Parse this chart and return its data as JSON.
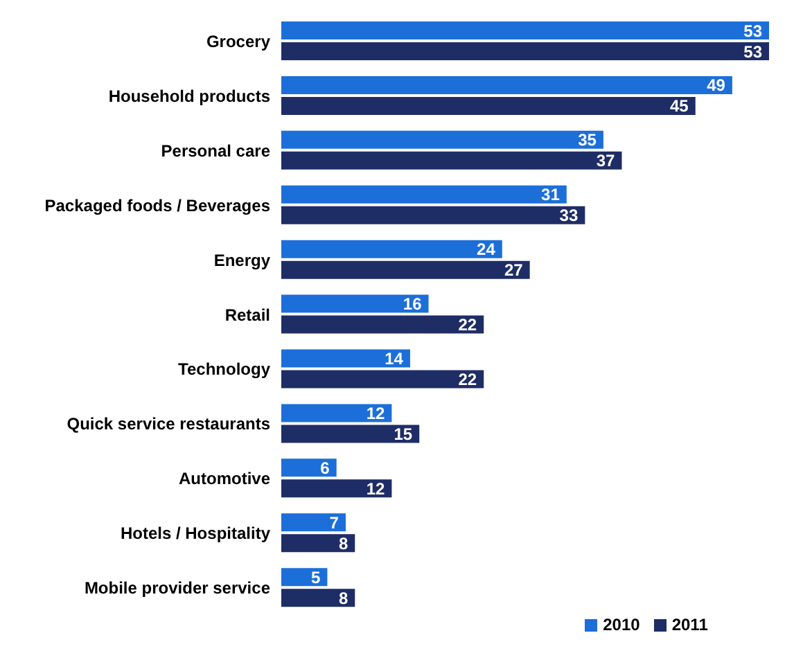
{
  "chart_data": {
    "type": "bar",
    "orientation": "horizontal",
    "categories": [
      "Grocery",
      "Household products",
      "Personal care",
      "Packaged foods / Beverages",
      "Energy",
      "Retail",
      "Technology",
      "Quick service restaurants",
      "Automotive",
      "Hotels / Hospitality",
      "Mobile provider service"
    ],
    "series": [
      {
        "name": "2010",
        "color": "#1c6fd9",
        "values": [
          53,
          49,
          35,
          31,
          24,
          16,
          14,
          12,
          6,
          7,
          5
        ]
      },
      {
        "name": "2011",
        "color": "#1f2d66",
        "values": [
          53,
          45,
          37,
          33,
          27,
          22,
          22,
          15,
          12,
          8,
          8
        ]
      }
    ],
    "data_labels": true,
    "legend": "bottom"
  }
}
